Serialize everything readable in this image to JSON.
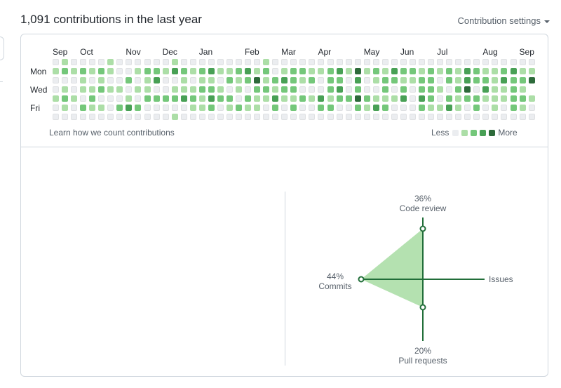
{
  "header": {
    "title": "1,091 contributions in the last year",
    "settings_label": "Contribution settings"
  },
  "calendar": {
    "months": [
      {
        "label": "Sep",
        "week": 0
      },
      {
        "label": "Oct",
        "week": 3
      },
      {
        "label": "Nov",
        "week": 8
      },
      {
        "label": "Dec",
        "week": 12
      },
      {
        "label": "Jan",
        "week": 16
      },
      {
        "label": "Feb",
        "week": 21
      },
      {
        "label": "Mar",
        "week": 25
      },
      {
        "label": "Apr",
        "week": 29
      },
      {
        "label": "May",
        "week": 34
      },
      {
        "label": "Jun",
        "week": 38
      },
      {
        "label": "Jul",
        "week": 42
      },
      {
        "label": "Aug",
        "week": 47
      },
      {
        "label": "Sep",
        "week": 51
      }
    ],
    "day_labels": {
      "mon": "Mon",
      "wed": "Wed",
      "fri": "Fri"
    },
    "colors": [
      "#ebedf0",
      "#acdea7",
      "#74c77a",
      "#48a055",
      "#2d6a3a"
    ],
    "weeks": [
      [
        0,
        1,
        0,
        0,
        1,
        0,
        0
      ],
      [
        1,
        2,
        0,
        1,
        2,
        1,
        0
      ],
      [
        0,
        1,
        0,
        0,
        1,
        0,
        0
      ],
      [
        0,
        2,
        1,
        1,
        0,
        2,
        0
      ],
      [
        0,
        1,
        0,
        1,
        2,
        1,
        0
      ],
      [
        0,
        2,
        1,
        2,
        0,
        1,
        0
      ],
      [
        1,
        1,
        0,
        1,
        0,
        0,
        0
      ],
      [
        0,
        0,
        0,
        1,
        0,
        2,
        0
      ],
      [
        0,
        0,
        2,
        0,
        1,
        3,
        0
      ],
      [
        0,
        1,
        0,
        1,
        0,
        2,
        0
      ],
      [
        0,
        2,
        1,
        1,
        2,
        0,
        0
      ],
      [
        0,
        2,
        3,
        0,
        2,
        0,
        0
      ],
      [
        0,
        1,
        0,
        0,
        2,
        0,
        0
      ],
      [
        1,
        3,
        0,
        1,
        2,
        0,
        1
      ],
      [
        0,
        2,
        1,
        1,
        3,
        0,
        0
      ],
      [
        0,
        1,
        0,
        1,
        2,
        1,
        0
      ],
      [
        0,
        2,
        1,
        2,
        1,
        1,
        0
      ],
      [
        0,
        3,
        1,
        2,
        3,
        2,
        0
      ],
      [
        0,
        1,
        0,
        1,
        2,
        0,
        0
      ],
      [
        0,
        1,
        2,
        0,
        2,
        1,
        0
      ],
      [
        0,
        2,
        1,
        1,
        0,
        2,
        0
      ],
      [
        0,
        3,
        2,
        0,
        2,
        1,
        0
      ],
      [
        0,
        1,
        4,
        2,
        1,
        1,
        0
      ],
      [
        1,
        2,
        1,
        2,
        1,
        0,
        0
      ],
      [
        0,
        0,
        2,
        1,
        3,
        2,
        0
      ],
      [
        0,
        1,
        3,
        2,
        1,
        0,
        0
      ],
      [
        0,
        2,
        2,
        2,
        1,
        2,
        0
      ],
      [
        0,
        2,
        1,
        0,
        2,
        0,
        0
      ],
      [
        0,
        1,
        2,
        0,
        1,
        0,
        0
      ],
      [
        0,
        1,
        0,
        0,
        3,
        2,
        0
      ],
      [
        0,
        2,
        2,
        2,
        1,
        2,
        0
      ],
      [
        0,
        3,
        2,
        3,
        2,
        0,
        0
      ],
      [
        0,
        1,
        0,
        0,
        2,
        0,
        0
      ],
      [
        0,
        4,
        3,
        2,
        4,
        2,
        0
      ],
      [
        0,
        1,
        0,
        0,
        2,
        1,
        0
      ],
      [
        0,
        2,
        1,
        0,
        1,
        3,
        0
      ],
      [
        0,
        1,
        2,
        2,
        1,
        2,
        0
      ],
      [
        0,
        3,
        2,
        0,
        1,
        0,
        0
      ],
      [
        0,
        2,
        1,
        2,
        3,
        0,
        0
      ],
      [
        0,
        2,
        1,
        0,
        0,
        0,
        0
      ],
      [
        0,
        1,
        2,
        2,
        3,
        2,
        0
      ],
      [
        0,
        2,
        2,
        2,
        2,
        1,
        0
      ],
      [
        0,
        1,
        0,
        1,
        0,
        1,
        0
      ],
      [
        0,
        2,
        2,
        0,
        2,
        3,
        0
      ],
      [
        0,
        1,
        1,
        2,
        1,
        1,
        0
      ],
      [
        0,
        3,
        3,
        4,
        2,
        0,
        0
      ],
      [
        0,
        2,
        2,
        0,
        2,
        2,
        0
      ],
      [
        0,
        1,
        2,
        3,
        1,
        0,
        0
      ],
      [
        0,
        1,
        1,
        1,
        1,
        1,
        0
      ],
      [
        0,
        2,
        3,
        1,
        1,
        0,
        0
      ],
      [
        0,
        3,
        2,
        2,
        2,
        2,
        0
      ],
      [
        0,
        1,
        2,
        1,
        2,
        1,
        0
      ],
      [
        0,
        1,
        4,
        5,
        1,
        0,
        0
      ]
    ],
    "learn_label": "Learn how we count contributions",
    "legend_less": "Less",
    "legend_more": "More"
  },
  "activity": {
    "code_review": {
      "pct": "36%",
      "label": "Code review",
      "value": 36
    },
    "issues": {
      "label": "Issues",
      "value": 0
    },
    "pull_requests": {
      "pct": "20%",
      "label": "Pull requests",
      "value": 20
    },
    "commits": {
      "pct": "44%",
      "label": "Commits",
      "value": 44
    },
    "colors": {
      "axis": "#216e39",
      "fill": "#acdea7"
    }
  }
}
